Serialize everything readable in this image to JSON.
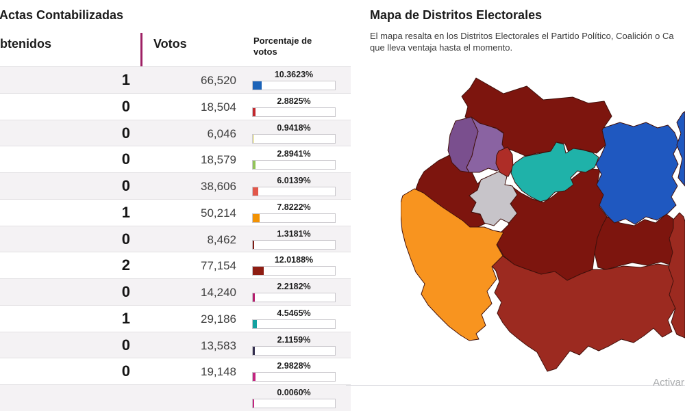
{
  "left_panel": {
    "title": "Actas Contabilizadas",
    "columns": {
      "obtained": "btenidos",
      "votes": "Votos",
      "percentage": "Porcentaje de votos"
    },
    "rows": [
      {
        "seats": "1",
        "votes": "66,520",
        "pct": "10.3623%",
        "color": "#1b63b8"
      },
      {
        "seats": "0",
        "votes": "18,504",
        "pct": "2.8825%",
        "color": "#c1282e"
      },
      {
        "seats": "0",
        "votes": "6,046",
        "pct": "0.9418%",
        "color": "#e9e5a6"
      },
      {
        "seats": "0",
        "votes": "18,579",
        "pct": "2.8941%",
        "color": "#92c35a"
      },
      {
        "seats": "0",
        "votes": "38,606",
        "pct": "6.0139%",
        "color": "#e2574a"
      },
      {
        "seats": "1",
        "votes": "50,214",
        "pct": "7.8222%",
        "color": "#f29203"
      },
      {
        "seats": "0",
        "votes": "8,462",
        "pct": "1.3181%",
        "color": "#7e1d15"
      },
      {
        "seats": "2",
        "votes": "77,154",
        "pct": "12.0188%",
        "color": "#8e1d12"
      },
      {
        "seats": "0",
        "votes": "14,240",
        "pct": "2.2182%",
        "color": "#b51d6d"
      },
      {
        "seats": "1",
        "votes": "29,186",
        "pct": "4.5465%",
        "color": "#13a1a0"
      },
      {
        "seats": "0",
        "votes": "13,583",
        "pct": "2.1159%",
        "color": "#332e4e"
      },
      {
        "seats": "0",
        "votes": "19,148",
        "pct": "2.9828%",
        "color": "#c32580"
      },
      {
        "seats": "",
        "votes": "",
        "pct": "0.0060%",
        "color": "#c32580"
      }
    ]
  },
  "right_panel": {
    "title": "Mapa de Distritos Electorales",
    "description_line1": "El mapa resalta en los Distritos Electorales el Partido Político, Coalición o Ca",
    "description_line2": "que lleva ventaja hasta el momento."
  },
  "watermark": "Activar",
  "colors": {
    "accent_line": "#9e2064",
    "row_alt_background": "#f4f2f4",
    "bar_track_border": "#c9c7cc",
    "separator": "#dcdce0"
  },
  "map": {
    "regions": [
      {
        "name": "district-north",
        "color": "#7d150e"
      },
      {
        "name": "district-west",
        "color": "#7d150e"
      },
      {
        "name": "district-center",
        "color": "#7d150e"
      },
      {
        "name": "district-east",
        "color": "#7d150e"
      },
      {
        "name": "district-south",
        "color": "#9c2a20"
      },
      {
        "name": "district-east-strip",
        "color": "#9c2a20"
      },
      {
        "name": "district-southwest",
        "color": "#f8941f"
      },
      {
        "name": "district-northwest-a",
        "color": "#7a4f8e"
      },
      {
        "name": "district-northwest-b",
        "color": "#8a63a2"
      },
      {
        "name": "district-center-red",
        "color": "#ae2d27"
      },
      {
        "name": "district-center-teal",
        "color": "#1fb2a9"
      },
      {
        "name": "district-center-gray",
        "color": "#c7c4c9"
      },
      {
        "name": "district-east-blue",
        "color": "#1f58c0"
      },
      {
        "name": "district-east-blue-sliver",
        "color": "#1f58c0"
      }
    ]
  }
}
